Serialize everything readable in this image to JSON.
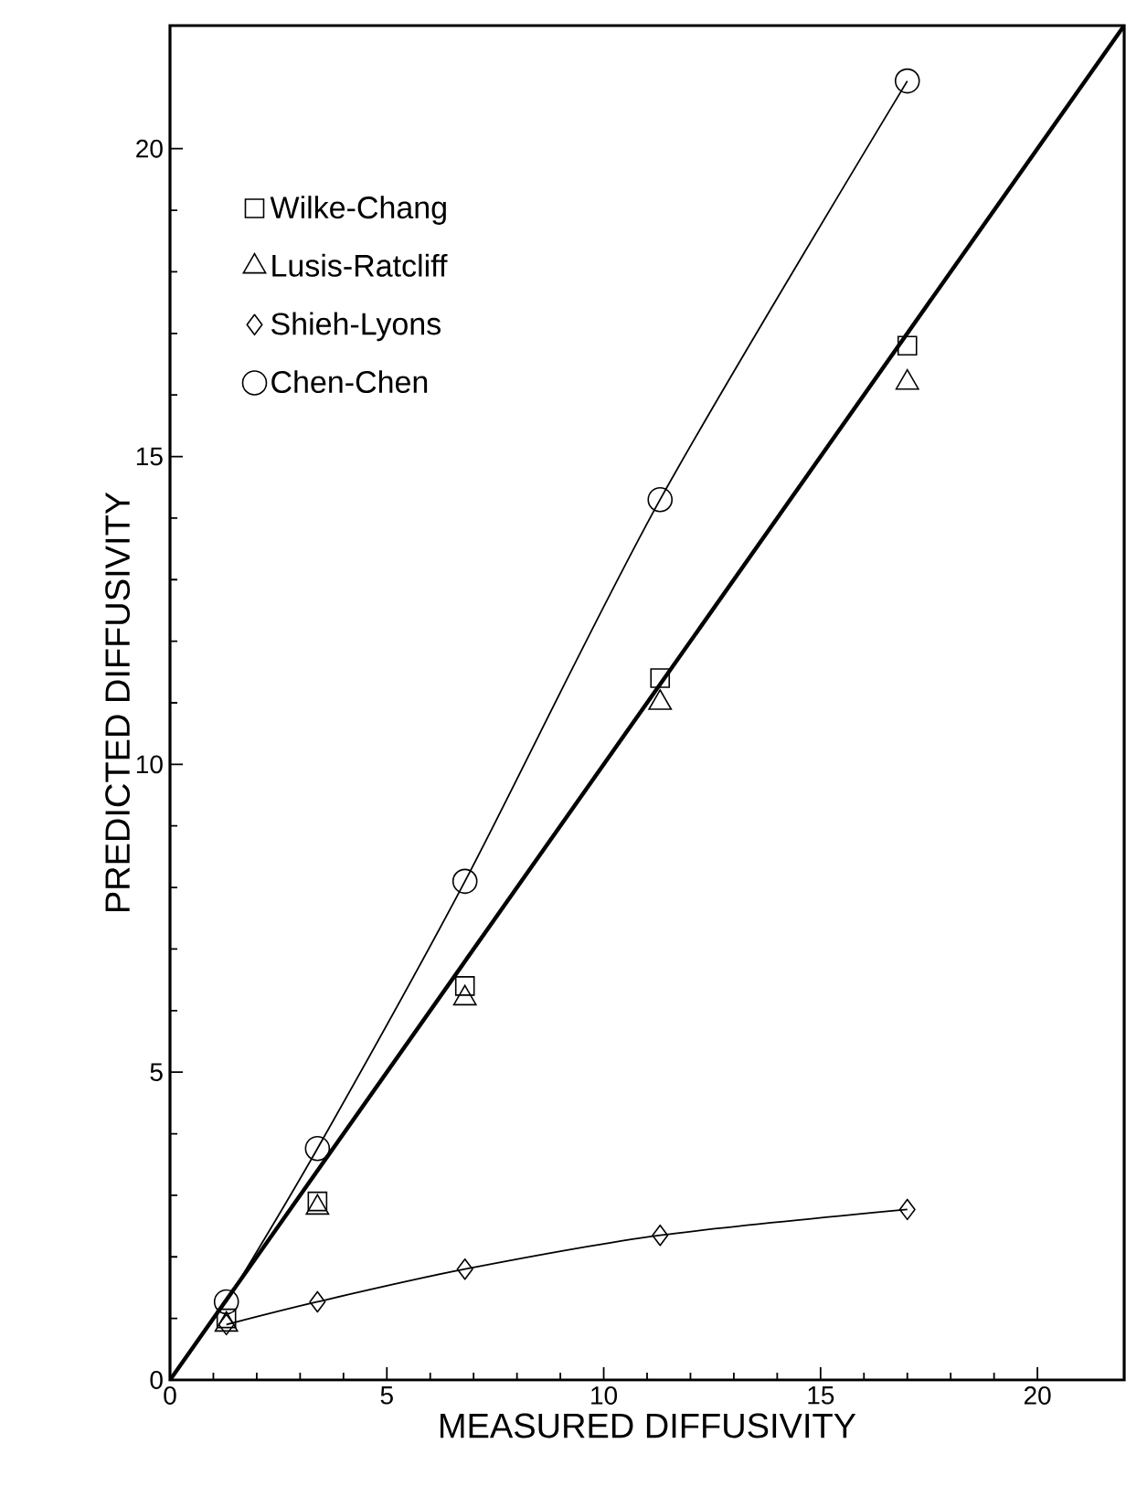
{
  "chart_data": {
    "type": "scatter",
    "xlabel": "MEASURED DIFFUSIVITY",
    "ylabel": "PREDICTED DIFFUSIVITY",
    "xlim": [
      0,
      22
    ],
    "ylim": [
      0,
      22
    ],
    "xticks": [
      0,
      5,
      10,
      15,
      20
    ],
    "yticks": [
      0,
      5,
      10,
      15,
      20
    ],
    "legend": "top left",
    "x": [
      1.3,
      3.4,
      6.8,
      11.3,
      17.0
    ],
    "series": [
      {
        "name": "Wilke-Chang",
        "color": "#000000",
        "marker": "square",
        "values": [
          1.0,
          2.9,
          6.4,
          11.4,
          16.8
        ]
      },
      {
        "name": "Lusis-Ratcliff",
        "color": "#000000",
        "marker": "triangle",
        "values": [
          0.9,
          2.8,
          6.2,
          11.0,
          16.2
        ]
      },
      {
        "name": "Shieh-Lyons",
        "type": "line",
        "color": "#000000",
        "marker": "diamond",
        "values": [
          0.9,
          1.27,
          1.8,
          2.35,
          2.77
        ]
      },
      {
        "name": "Chen-Chen",
        "type": "line",
        "color": "#000000",
        "marker": "circle",
        "values": [
          1.27,
          3.76,
          8.1,
          14.3,
          21.1
        ]
      },
      {
        "type": "line",
        "color": "#000000",
        "marker": "none",
        "x": [
          0,
          22
        ],
        "values": [
          0,
          22
        ]
      }
    ]
  }
}
